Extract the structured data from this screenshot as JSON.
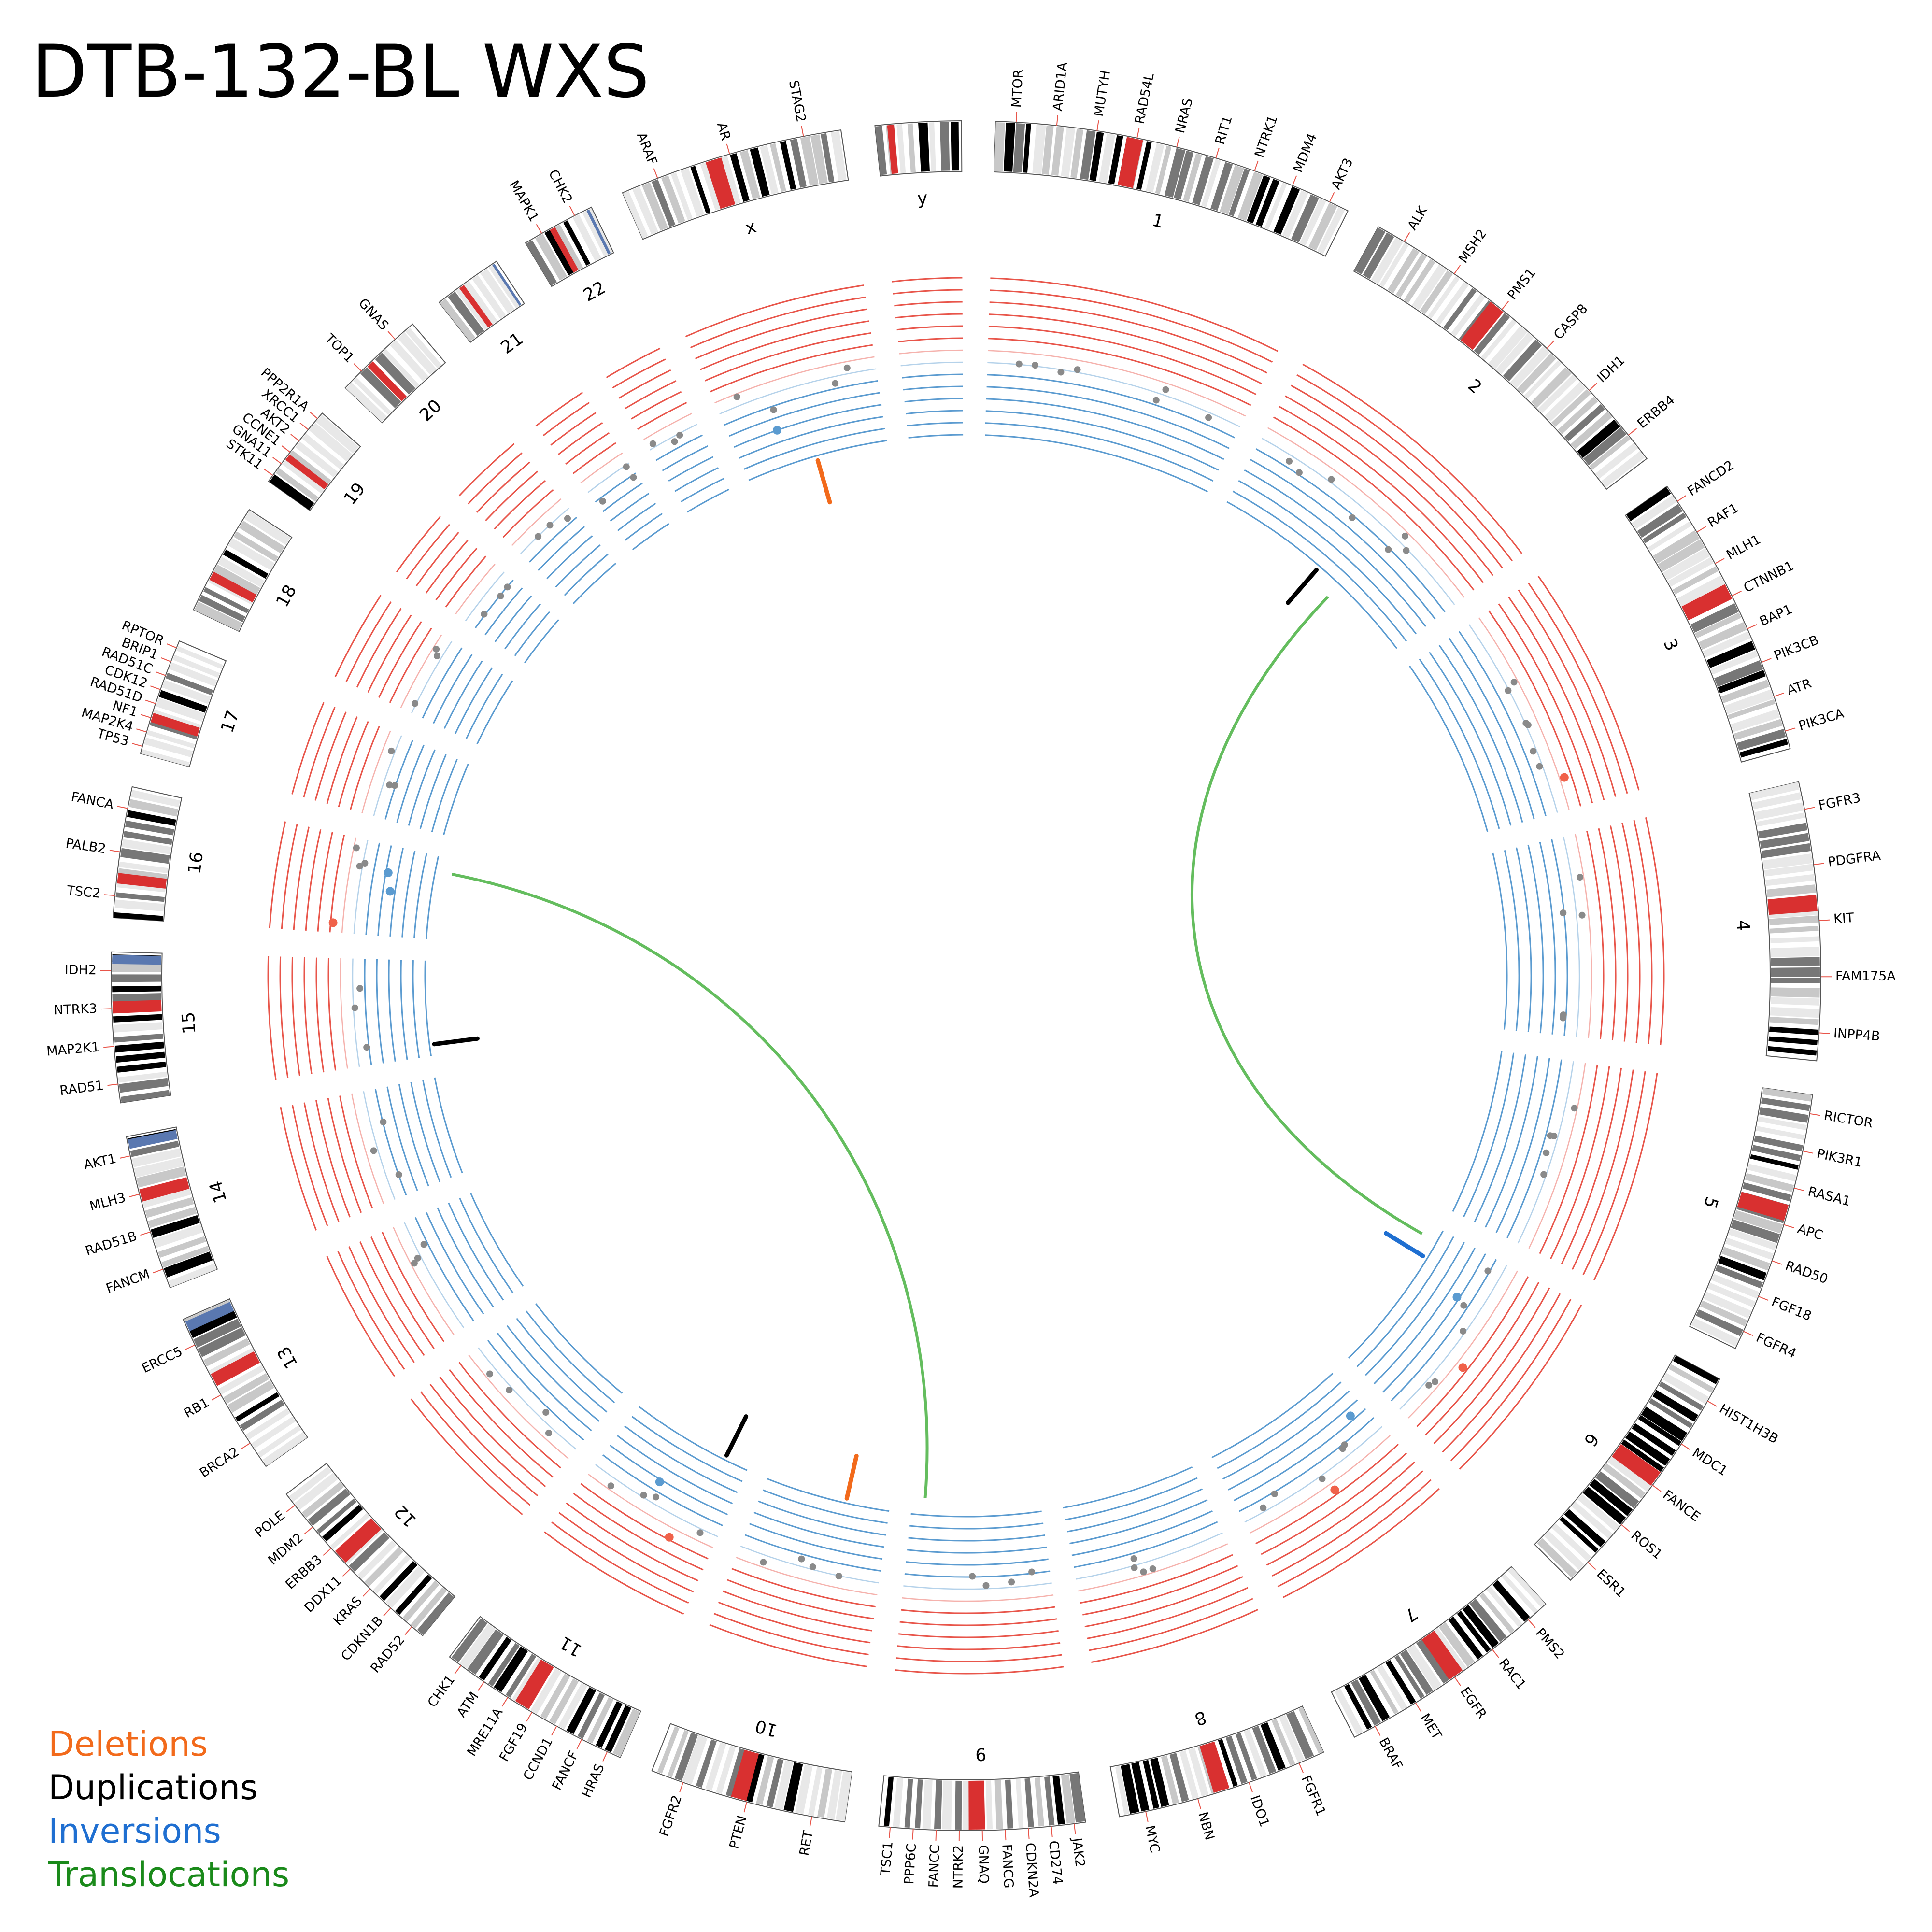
{
  "title": "DTB-132-BL WXS",
  "legend": [
    {
      "label": "Deletions",
      "color": "#f26a1b"
    },
    {
      "label": "Duplications",
      "color": "#000000"
    },
    {
      "label": "Inversions",
      "color": "#1f6fd1"
    },
    {
      "label": "Translocations",
      "color": "#1a8a1a"
    }
  ],
  "colors": {
    "gain_track": "#e8554a",
    "loss_track": "#5b9bd0",
    "cnv_neutral_point": "#8a8a8a",
    "cnv_gain_point": "#f0624a",
    "cnv_loss_point": "#5b9bd0",
    "band_gray": "#888888",
    "centromere": "#d93030",
    "gvar": "#5a78b0",
    "label_tick": "#e8554a"
  },
  "chromosomes": [
    {
      "name": "1",
      "size": 249,
      "genes": [
        "MTOR",
        "ARID1A",
        "MUTYH",
        "RAD54L",
        "NRAS",
        "RIT1",
        "NTRK1",
        "MDM4",
        "AKT3"
      ]
    },
    {
      "name": "2",
      "size": 243,
      "genes": [
        "ALK",
        "MSH2",
        "PMS1",
        "CASP8",
        "IDH1",
        "ERBB4"
      ]
    },
    {
      "name": "3",
      "size": 198,
      "genes": [
        "FANCD2",
        "RAF1",
        "MLH1",
        "CTNNB1",
        "BAP1",
        "PIK3CB",
        "ATR",
        "PIK3CA"
      ]
    },
    {
      "name": "4",
      "size": 191,
      "genes": [
        "FGFR3",
        "PDGFRA",
        "KIT",
        "FAM175A",
        "INPP4B"
      ]
    },
    {
      "name": "5",
      "size": 181,
      "genes": [
        "RICTOR",
        "PIK3R1",
        "RASA1",
        "APC",
        "RAD50",
        "FGF18",
        "FGFR4"
      ]
    },
    {
      "name": "6",
      "size": 171,
      "genes": [
        "HIST1H3B",
        "MDC1",
        "FANCE",
        "ROS1",
        "ESR1"
      ]
    },
    {
      "name": "7",
      "size": 159,
      "genes": [
        "PMS2",
        "RAC1",
        "EGFR",
        "MET",
        "BRAF"
      ]
    },
    {
      "name": "8",
      "size": 146,
      "genes": [
        "FGFR1",
        "IDO1",
        "NBN",
        "MYC"
      ]
    },
    {
      "name": "9",
      "size": 141,
      "genes": [
        "JAK2",
        "CD274",
        "CDKN2A",
        "FANCG",
        "GNAQ",
        "NTRK2",
        "FANCC",
        "PPP6C",
        "TSC1"
      ]
    },
    {
      "name": "10",
      "size": 136,
      "genes": [
        "RET",
        "PTEN",
        "FGFR2"
      ]
    },
    {
      "name": "11",
      "size": 135,
      "genes": [
        "HRAS",
        "FANCF",
        "CCND1",
        "FGF19",
        "MRE11A",
        "ATM",
        "CHK1"
      ]
    },
    {
      "name": "12",
      "size": 134,
      "genes": [
        "RAD52",
        "CDKN1B",
        "KRAS",
        "DDX11",
        "ERBB3",
        "MDM2",
        "POLE"
      ]
    },
    {
      "name": "13",
      "size": 115,
      "genes": [
        "BRCA2",
        "RB1",
        "ERCC5"
      ]
    },
    {
      "name": "14",
      "size": 107,
      "genes": [
        "FANCM",
        "RAD51B",
        "MLH3",
        "AKT1"
      ]
    },
    {
      "name": "15",
      "size": 103,
      "genes": [
        "RAD51",
        "MAP2K1",
        "NTRK3",
        "IDH2"
      ]
    },
    {
      "name": "16",
      "size": 90,
      "genes": [
        "TSC2",
        "PALB2",
        "FANCA"
      ]
    },
    {
      "name": "17",
      "size": 81,
      "genes": [
        "TP53",
        "MAP2K4",
        "NF1",
        "RAD51D",
        "CDK12",
        "RAD51C",
        "BRIP1",
        "RPTOR"
      ]
    },
    {
      "name": "18",
      "size": 78,
      "genes": []
    },
    {
      "name": "19",
      "size": 59,
      "genes": [
        "STK11",
        "GNA11",
        "CCNE1",
        "AKT2",
        "XRCC1",
        "PPP2R1A"
      ]
    },
    {
      "name": "20",
      "size": 63,
      "genes": [
        "TOP1",
        "GNAS"
      ]
    },
    {
      "name": "21",
      "size": 48,
      "genes": []
    },
    {
      "name": "22",
      "size": 51,
      "genes": [
        "MAPK1",
        "CHK2"
      ]
    },
    {
      "name": "x",
      "size": 155,
      "genes": [
        "ARAF",
        "AR",
        "STAG2"
      ]
    },
    {
      "name": "y",
      "size": 59,
      "genes": []
    }
  ],
  "structural_variants": [
    {
      "type": "translocation",
      "from": {
        "chr": "2",
        "pos": 0.62
      },
      "to": {
        "chr": "6",
        "pos": 0.08
      }
    },
    {
      "type": "translocation",
      "from": {
        "chr": "16",
        "pos": 0.82
      },
      "to": {
        "chr": "9",
        "pos": 0.9
      }
    },
    {
      "type": "deletion",
      "chr": "x",
      "pos": 0.5
    },
    {
      "type": "deletion",
      "chr": "10",
      "pos": 0.35
    },
    {
      "type": "duplication",
      "chr": "2",
      "pos": 0.5
    },
    {
      "type": "duplication",
      "chr": "15",
      "pos": 0.12
    },
    {
      "type": "duplication",
      "chr": "11",
      "pos": 0.2
    },
    {
      "type": "inversion",
      "chr": "6",
      "pos": 0.2
    }
  ]
}
